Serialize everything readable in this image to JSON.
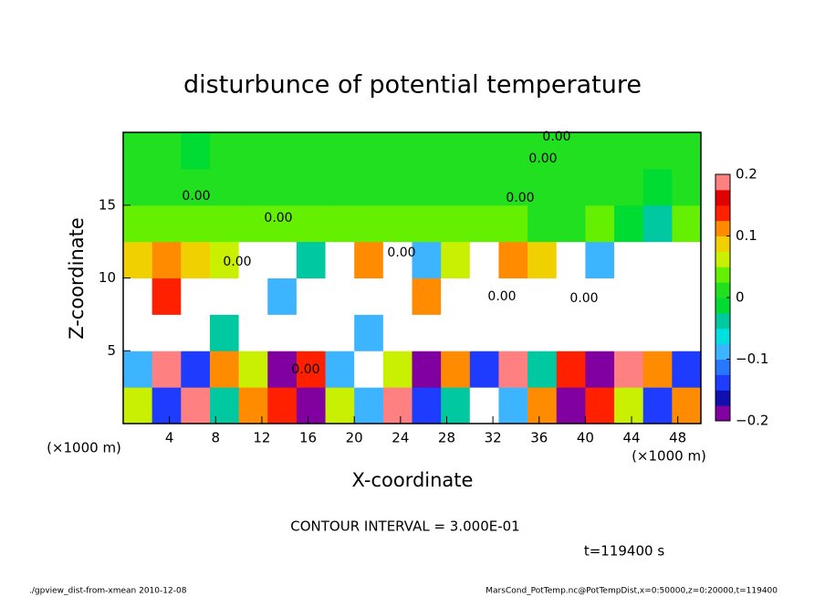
{
  "chart_data": {
    "type": "heatmap",
    "title": "disturbunce of potential temperature",
    "x_label": "X-coordinate",
    "y_label": "Z-coordinate",
    "x_unit": "(×1000 m)",
    "y_unit": "(×1000 m)",
    "contour_interval": "CONTOUR INTERVAL = 3.000E-01",
    "time": "t=119400 s",
    "footer_left": "./gpview_dist-from-xmean  2010-12-08",
    "footer_right": "MarsCond_PotTemp.nc@PotTempDist,x=0:50000,z=0:20000,t=119400",
    "xlim": [
      0,
      50
    ],
    "ylim": [
      0,
      20
    ],
    "xticks": [
      4,
      8,
      12,
      16,
      20,
      24,
      28,
      32,
      36,
      40,
      44,
      48
    ],
    "yticks": [
      5,
      10,
      15
    ],
    "x": [
      1.25,
      3.75,
      6.25,
      8.75,
      11.25,
      13.75,
      16.25,
      18.75,
      21.25,
      23.75,
      26.25,
      28.75,
      31.25,
      33.75,
      36.25,
      38.75,
      41.25,
      43.75,
      46.25,
      48.75
    ],
    "y": [
      1.25,
      3.75,
      6.25,
      8.75,
      11.25,
      13.75,
      16.25,
      18.75
    ],
    "values": [
      [
        0.05,
        -0.15,
        0.2,
        -0.05,
        0.1,
        0.15,
        -0.2,
        0.05,
        -0.1,
        0.2,
        -0.15,
        -0.05,
        0.25,
        -0.1,
        0.1,
        -0.2,
        0.15,
        0.05,
        -0.15,
        0.1
      ],
      [
        -0.1,
        0.2,
        -0.15,
        0.1,
        0.05,
        -0.2,
        0.15,
        -0.1,
        0.25,
        0.05,
        -0.2,
        0.1,
        -0.15,
        0.2,
        -0.05,
        0.15,
        -0.2,
        0.2,
        0.1,
        -0.15
      ],
      [
        0.25,
        0.25,
        0.25,
        -0.05,
        0.25,
        0.25,
        0.25,
        0.25,
        -0.1,
        0.25,
        0.25,
        0.25,
        0.25,
        0.25,
        0.25,
        0.25,
        0.25,
        0.25,
        0.25,
        0.25
      ],
      [
        0.25,
        0.15,
        0.25,
        0.25,
        0.25,
        -0.1,
        0.25,
        0.25,
        0.25,
        0.25,
        0.1,
        0.25,
        0.25,
        0.25,
        0.25,
        0.25,
        0.25,
        0.25,
        0.25,
        0.25
      ],
      [
        0.08,
        0.1,
        0.08,
        0.05,
        0.25,
        0.25,
        -0.05,
        0.25,
        0.1,
        0.25,
        -0.1,
        0.05,
        0.25,
        0.1,
        0.08,
        0.25,
        -0.1,
        0.25,
        0.25,
        0.25
      ],
      [
        0.03,
        0.03,
        0.03,
        0.04,
        0.04,
        0.03,
        0.03,
        0.03,
        0.03,
        0.03,
        0.03,
        0.03,
        0.03,
        0.03,
        0.02,
        0.02,
        0.03,
        -0.02,
        -0.05,
        0.03
      ],
      [
        0,
        0,
        0,
        0.02,
        0,
        0,
        0,
        0,
        0,
        0,
        0,
        0,
        0,
        0,
        0,
        0,
        0,
        0,
        -0.02,
        0
      ],
      [
        0,
        0,
        -0.02,
        0,
        0,
        0,
        0,
        0,
        0,
        0,
        0,
        0,
        0,
        0,
        0,
        0.01,
        0,
        0,
        0,
        0
      ]
    ],
    "colorbar": {
      "lim": [
        -0.2,
        0.2
      ],
      "ticks": [
        {
          "value": -0.2,
          "label": "−0.2"
        },
        {
          "value": -0.1,
          "label": "−0.1"
        },
        0,
        0.1,
        0.2
      ],
      "colors": [
        "#8000a0",
        "#1010b0",
        "#1e3cff",
        "#2878ff",
        "#3cb4ff",
        "#00e0e0",
        "#00c8a0",
        "#00dc32",
        "#20e020",
        "#64f000",
        "#c8f000",
        "#f0d000",
        "#ff8c00",
        "#ff2000",
        "#e00000",
        "#ff8080"
      ],
      "over_color": "#ffffff"
    },
    "contour_labels": [
      "0.00",
      "0.00",
      "0.00",
      "0.00",
      "0.00",
      "0.00",
      "0.00",
      "0.00",
      "0.00",
      "0.00"
    ]
  }
}
